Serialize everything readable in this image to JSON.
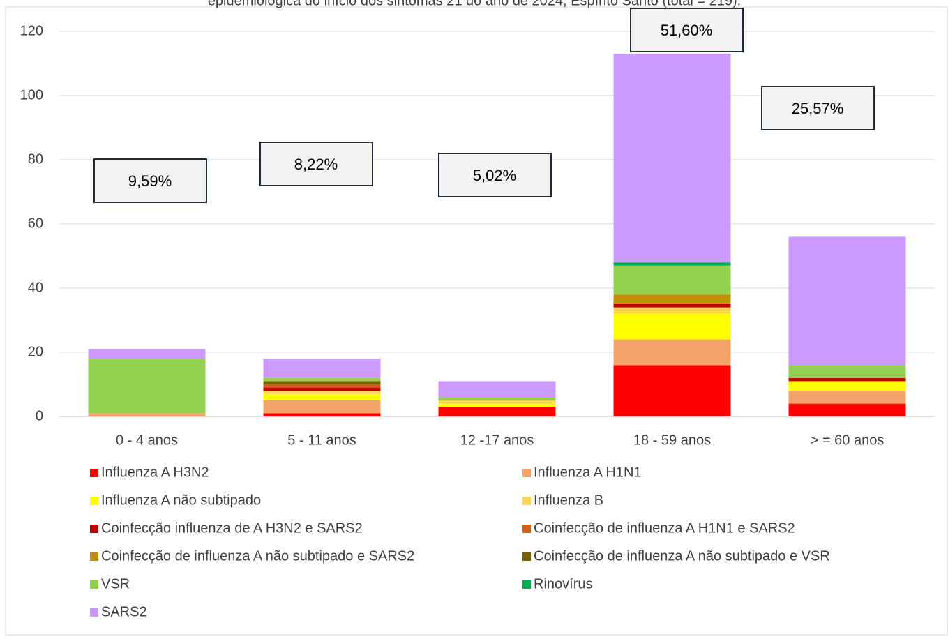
{
  "chart_data": {
    "type": "stacked_bar",
    "title": "epidemiológica do início dos sintomas 21 do ano de 2024, Espírito Santo (total = 219).",
    "categories": [
      "0 - 4  anos",
      "5 - 11 anos",
      "12 -17 anos",
      "18 - 59 anos",
      "> = 60 anos"
    ],
    "series": [
      {
        "name": "Influenza A H3N2",
        "color": "#ff0000",
        "values": [
          0,
          1,
          3,
          16,
          4
        ]
      },
      {
        "name": "Influenza A H1N1",
        "color": "#f4a46b",
        "values": [
          1,
          4,
          0,
          8,
          4
        ]
      },
      {
        "name": "Influenza A não subtipado",
        "color": "#ffff00",
        "values": [
          0,
          2,
          1,
          8,
          3
        ]
      },
      {
        "name": "Influenza B",
        "color": "#ffd54f",
        "values": [
          0,
          1,
          1,
          2,
          0
        ]
      },
      {
        "name": "Coinfecção influenza de A H3N2 e SARS2",
        "color": "#c00000",
        "values": [
          0,
          1,
          0,
          1,
          1
        ]
      },
      {
        "name": "Coinfecção de influenza A H1N1 e SARS2",
        "color": "#d2601a",
        "values": [
          0,
          1,
          0,
          0,
          0
        ]
      },
      {
        "name": "Coinfecção de influenza A  não subtipado  e SARS2",
        "color": "#bf9000",
        "values": [
          0,
          0,
          0,
          3,
          0
        ]
      },
      {
        "name": "Coinfecção de influenza A  não subtipado  e VSR",
        "color": "#7f6000",
        "values": [
          0,
          1,
          0,
          0,
          0
        ]
      },
      {
        "name": "VSR",
        "color": "#92d050",
        "values": [
          17,
          1,
          1,
          9,
          4
        ]
      },
      {
        "name": "Rinovírus",
        "color": "#00b050",
        "values": [
          0,
          0,
          0,
          1,
          0
        ]
      },
      {
        "name": "SARS2",
        "color": "#cc99ff",
        "values": [
          3,
          6,
          5,
          65,
          40
        ]
      }
    ],
    "annotations": [
      "9,59%",
      "8,22%",
      "5,02%",
      "51,60%",
      "25,57%"
    ],
    "ylim": [
      0,
      120
    ],
    "yticks": [
      0,
      20,
      40,
      60,
      80,
      100,
      120
    ],
    "grid": true
  }
}
